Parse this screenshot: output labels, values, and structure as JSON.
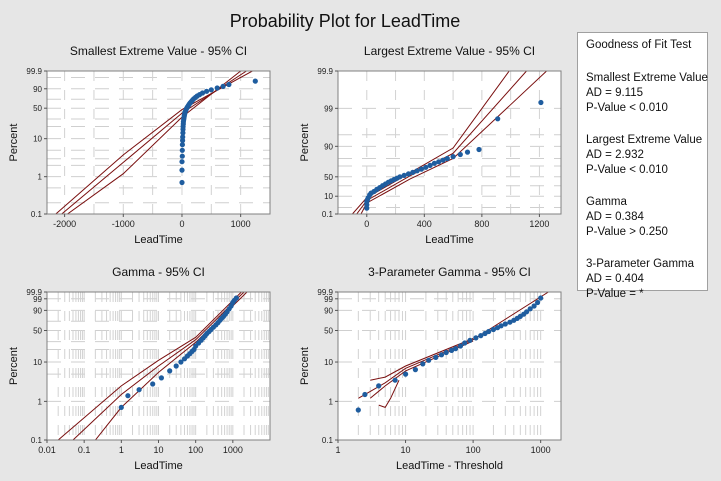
{
  "title": "Probability Plot for LeadTime",
  "colors": {
    "background": "#e6e6e6",
    "plot_bg": "#ffffff",
    "points": "#1f5d9f",
    "lines": "#7a0f0f"
  },
  "gof": {
    "title": "Goodness of Fit Test",
    "blocks": [
      {
        "name": "Smallest Extreme Value",
        "ad": "AD = 9.115",
        "p": "P-Value < 0.010"
      },
      {
        "name": "Largest Extreme Value",
        "ad": "AD = 2.932",
        "p": "P-Value < 0.010"
      },
      {
        "name": "Gamma",
        "ad": "AD = 0.384",
        "p": "P-Value > 0.250"
      },
      {
        "name": "3-Parameter Gamma",
        "ad": "AD = 0.404",
        "p": "P-Value = *"
      }
    ]
  },
  "chart_data": [
    {
      "type": "scatter",
      "title": "Smallest Extreme Value - 95% CI",
      "xlabel": "LeadTime",
      "ylabel": "Percent",
      "xscale": "linear",
      "xlim": [
        -2300,
        1500
      ],
      "xticks": [
        -2000,
        -1000,
        0,
        1000
      ],
      "xtick_labels": [
        "-2000",
        "-1000",
        "0",
        "1000"
      ],
      "yscale": "sev",
      "ylim": [
        0.1,
        99.9
      ],
      "yticks": [
        0.1,
        1,
        10,
        50,
        90,
        99.9
      ],
      "ytick_labels": [
        "0.1",
        "1",
        "10",
        "50",
        "90",
        "99.9"
      ],
      "grid_ticks": [
        0.1,
        0.2,
        0.5,
        1,
        2,
        3,
        5,
        10,
        20,
        30,
        50,
        70,
        90,
        99,
        99.9
      ],
      "fit": [
        [
          -2050,
          0.1
        ],
        [
          -1000,
          2.4
        ],
        [
          0,
          40
        ],
        [
          1100,
          99.9
        ]
      ],
      "ci_lower": [
        [
          -1950,
          0.1
        ],
        [
          -1000,
          1.2
        ],
        [
          0,
          33
        ],
        [
          1000,
          99.9
        ]
      ],
      "ci_upper": [
        [
          -2150,
          0.1
        ],
        [
          -1000,
          3.8
        ],
        [
          0,
          47
        ],
        [
          1200,
          99.9
        ]
      ],
      "points": [
        [
          0,
          0.7
        ],
        [
          0,
          1.5
        ],
        [
          0,
          2.5
        ],
        [
          5,
          3.5
        ],
        [
          5,
          5
        ],
        [
          8,
          7
        ],
        [
          10,
          9
        ],
        [
          12,
          11
        ],
        [
          15,
          14
        ],
        [
          18,
          17
        ],
        [
          20,
          20
        ],
        [
          22,
          23
        ],
        [
          25,
          26
        ],
        [
          30,
          29
        ],
        [
          35,
          32
        ],
        [
          40,
          35
        ],
        [
          45,
          38
        ],
        [
          50,
          41
        ],
        [
          60,
          44
        ],
        [
          70,
          47
        ],
        [
          80,
          50
        ],
        [
          95,
          53
        ],
        [
          110,
          56
        ],
        [
          125,
          59
        ],
        [
          140,
          62
        ],
        [
          160,
          65
        ],
        [
          180,
          68
        ],
        [
          200,
          71
        ],
        [
          230,
          74
        ],
        [
          260,
          77
        ],
        [
          300,
          80
        ],
        [
          350,
          83
        ],
        [
          420,
          86
        ],
        [
          500,
          88.5
        ],
        [
          600,
          91
        ],
        [
          700,
          93
        ],
        [
          800,
          95
        ],
        [
          1250,
          97.5
        ]
      ]
    },
    {
      "type": "scatter",
      "title": "Largest Extreme Value - 95% CI",
      "xlabel": "LeadTime",
      "ylabel": "Percent",
      "xscale": "linear",
      "xlim": [
        -200,
        1350
      ],
      "xticks": [
        0,
        400,
        800,
        1200
      ],
      "xtick_labels": [
        "0",
        "400",
        "800",
        "1200"
      ],
      "yscale": "lev",
      "ylim": [
        0.1,
        99.9
      ],
      "yticks": [
        0.1,
        10,
        50,
        90,
        99,
        99.9
      ],
      "ytick_labels": [
        "0.1",
        "10",
        "50",
        "90",
        "99",
        "99.9"
      ],
      "grid_ticks": [
        0.1,
        1,
        10,
        30,
        50,
        70,
        80,
        90,
        95,
        99,
        99.9
      ],
      "fit": [
        [
          -70,
          0.1
        ],
        [
          0,
          5
        ],
        [
          300,
          52
        ],
        [
          600,
          85
        ],
        [
          1110,
          99.9
        ]
      ],
      "ci_lower": [
        [
          -40,
          0.1
        ],
        [
          0,
          3
        ],
        [
          300,
          45
        ],
        [
          600,
          80
        ],
        [
          1250,
          99.9
        ]
      ],
      "ci_upper": [
        [
          -100,
          0.1
        ],
        [
          0,
          8
        ],
        [
          300,
          58
        ],
        [
          600,
          89
        ],
        [
          990,
          99.9
        ]
      ],
      "points": [
        [
          0,
          0.8
        ],
        [
          0,
          2
        ],
        [
          0,
          4
        ],
        [
          5,
          6
        ],
        [
          10,
          8
        ],
        [
          20,
          12
        ],
        [
          30,
          15
        ],
        [
          50,
          18
        ],
        [
          70,
          22
        ],
        [
          90,
          26
        ],
        [
          110,
          30
        ],
        [
          130,
          34
        ],
        [
          150,
          38
        ],
        [
          170,
          41
        ],
        [
          190,
          44
        ],
        [
          210,
          47
        ],
        [
          230,
          50
        ],
        [
          260,
          53
        ],
        [
          290,
          56
        ],
        [
          320,
          59
        ],
        [
          350,
          62
        ],
        [
          380,
          65
        ],
        [
          410,
          68
        ],
        [
          440,
          71
        ],
        [
          470,
          74
        ],
        [
          500,
          76
        ],
        [
          530,
          78
        ],
        [
          560,
          80
        ],
        [
          600,
          82
        ],
        [
          650,
          84
        ],
        [
          700,
          86
        ],
        [
          780,
          88
        ],
        [
          910,
          98.1
        ],
        [
          1210,
          99.3
        ]
      ]
    },
    {
      "type": "scatter",
      "title": "Gamma - 95% CI",
      "xlabel": "LeadTime",
      "ylabel": "Percent",
      "xscale": "log",
      "xlim": [
        0.01,
        10000
      ],
      "xticks": [
        0.01,
        0.1,
        1,
        10,
        100,
        1000
      ],
      "xtick_labels": [
        "0.01",
        "0.1",
        "1",
        "10",
        "100",
        "1000"
      ],
      "yscale": "sev",
      "ylim": [
        0.1,
        99.9
      ],
      "yticks": [
        0.1,
        1,
        10,
        50,
        90,
        99,
        99.9
      ],
      "ytick_labels": [
        "0.1",
        "1",
        "10",
        "50",
        "90",
        "99",
        "99.9"
      ],
      "grid_ticks": [
        0.1,
        1,
        5,
        10,
        20,
        30,
        50,
        70,
        90,
        99,
        99.9
      ],
      "fit": [
        [
          0.05,
          0.1
        ],
        [
          1,
          1.5
        ],
        [
          10,
          8
        ],
        [
          100,
          33
        ],
        [
          2000,
          99.9
        ]
      ],
      "ci_lower": [
        [
          0.02,
          0.1
        ],
        [
          1,
          2.5
        ],
        [
          10,
          11
        ],
        [
          100,
          37
        ],
        [
          1700,
          99.9
        ]
      ],
      "ci_upper": [
        [
          0.2,
          0.1
        ],
        [
          1,
          0.7
        ],
        [
          10,
          5.5
        ],
        [
          100,
          29
        ],
        [
          2400,
          99.9
        ]
      ],
      "points": [
        [
          1,
          0.7
        ],
        [
          1.5,
          1.4
        ],
        [
          3,
          2
        ],
        [
          7,
          2.8
        ],
        [
          12,
          4
        ],
        [
          20,
          6
        ],
        [
          30,
          8
        ],
        [
          40,
          10
        ],
        [
          50,
          12
        ],
        [
          60,
          14
        ],
        [
          70,
          16
        ],
        [
          80,
          18
        ],
        [
          90,
          20
        ],
        [
          100,
          24
        ],
        [
          120,
          28
        ],
        [
          140,
          32
        ],
        [
          160,
          36
        ],
        [
          180,
          40
        ],
        [
          200,
          44
        ],
        [
          230,
          48
        ],
        [
          260,
          52
        ],
        [
          300,
          57
        ],
        [
          350,
          62
        ],
        [
          400,
          67
        ],
        [
          450,
          72
        ],
        [
          500,
          76
        ],
        [
          560,
          80
        ],
        [
          630,
          84
        ],
        [
          700,
          88
        ],
        [
          800,
          92
        ],
        [
          900,
          95
        ],
        [
          1000,
          97.5
        ],
        [
          1100,
          98.5
        ],
        [
          1250,
          99.2
        ]
      ]
    },
    {
      "type": "scatter",
      "title": "3-Parameter Gamma - 95% CI",
      "xlabel": "LeadTime - Threshold",
      "ylabel": "Percent",
      "xscale": "log",
      "xlim": [
        1,
        2000
      ],
      "xticks": [
        1,
        10,
        100,
        1000
      ],
      "xtick_labels": [
        "1",
        "10",
        "100",
        "1000"
      ],
      "yscale": "sev",
      "ylim": [
        0.1,
        99.9
      ],
      "yticks": [
        0.1,
        1,
        10,
        50,
        90,
        99,
        99.9
      ],
      "ytick_labels": [
        "0.1",
        "1",
        "10",
        "50",
        "90",
        "99",
        "99.9"
      ],
      "grid_ticks": [
        0.1,
        1,
        10,
        50,
        90,
        99,
        99.9
      ],
      "fit": [
        [
          2,
          1.2
        ],
        [
          5,
          3
        ],
        [
          10,
          7
        ],
        [
          100,
          33
        ],
        [
          1300,
          99.9
        ]
      ],
      "ci_lower": [
        [
          3,
          1.2
        ],
        [
          5,
          2.5
        ],
        [
          10,
          6
        ],
        [
          100,
          31
        ]
      ],
      "ci_upper": [
        [
          3,
          3.5
        ],
        [
          5,
          4.2
        ],
        [
          10,
          8
        ],
        [
          100,
          35
        ]
      ],
      "ci_hook": [
        [
          4,
          0.8
        ],
        [
          5,
          0.7
        ],
        [
          6,
          1.2
        ],
        [
          8,
          3.5
        ]
      ],
      "points": [
        [
          2,
          0.6
        ],
        [
          2.5,
          1.5
        ],
        [
          4,
          2.5
        ],
        [
          7,
          3.5
        ],
        [
          10,
          5
        ],
        [
          14,
          6.5
        ],
        [
          18,
          9
        ],
        [
          22,
          11
        ],
        [
          28,
          13
        ],
        [
          34,
          15
        ],
        [
          40,
          17
        ],
        [
          48,
          19
        ],
        [
          55,
          21
        ],
        [
          65,
          24
        ],
        [
          75,
          28
        ],
        [
          90,
          32
        ],
        [
          110,
          36
        ],
        [
          130,
          40
        ],
        [
          150,
          44
        ],
        [
          170,
          48
        ],
        [
          200,
          52
        ],
        [
          230,
          56
        ],
        [
          260,
          60
        ],
        [
          300,
          64
        ],
        [
          350,
          68
        ],
        [
          400,
          72
        ],
        [
          450,
          76
        ],
        [
          500,
          80
        ],
        [
          560,
          84
        ],
        [
          620,
          88
        ],
        [
          700,
          92
        ],
        [
          800,
          95
        ],
        [
          900,
          97.5
        ],
        [
          1000,
          99.2
        ]
      ]
    }
  ]
}
